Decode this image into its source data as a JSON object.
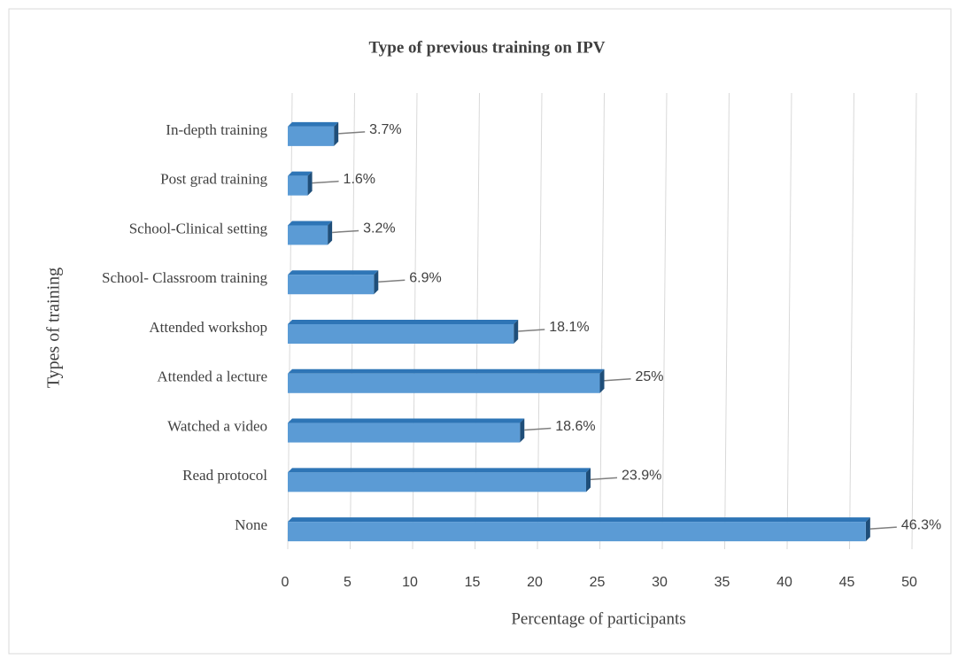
{
  "chart_data": {
    "type": "bar",
    "orientation": "horizontal",
    "title": "Type of previous training on IPV",
    "x_label": "Percentage of participants",
    "y_label": "Types of training",
    "categories": [
      "In-depth training",
      "Post grad training",
      "School-Clinical setting",
      "School- Classroom training",
      "Attended workshop",
      "Attended a lecture",
      "Watched a video",
      "Read protocol",
      "None"
    ],
    "values": [
      3.7,
      1.6,
      3.2,
      6.9,
      18.1,
      25,
      18.6,
      23.9,
      46.3
    ],
    "value_labels": [
      "3.7%",
      "1.6%",
      "3.2%",
      "6.9%",
      "18.1%",
      "25%",
      "18.6%",
      "23.9%",
      "46.3%"
    ],
    "color": "#5b9bd5",
    "xlim": [
      0,
      50
    ],
    "xticks": [
      0,
      5,
      10,
      15,
      20,
      25,
      30,
      35,
      40,
      45,
      50
    ],
    "grid": true
  }
}
